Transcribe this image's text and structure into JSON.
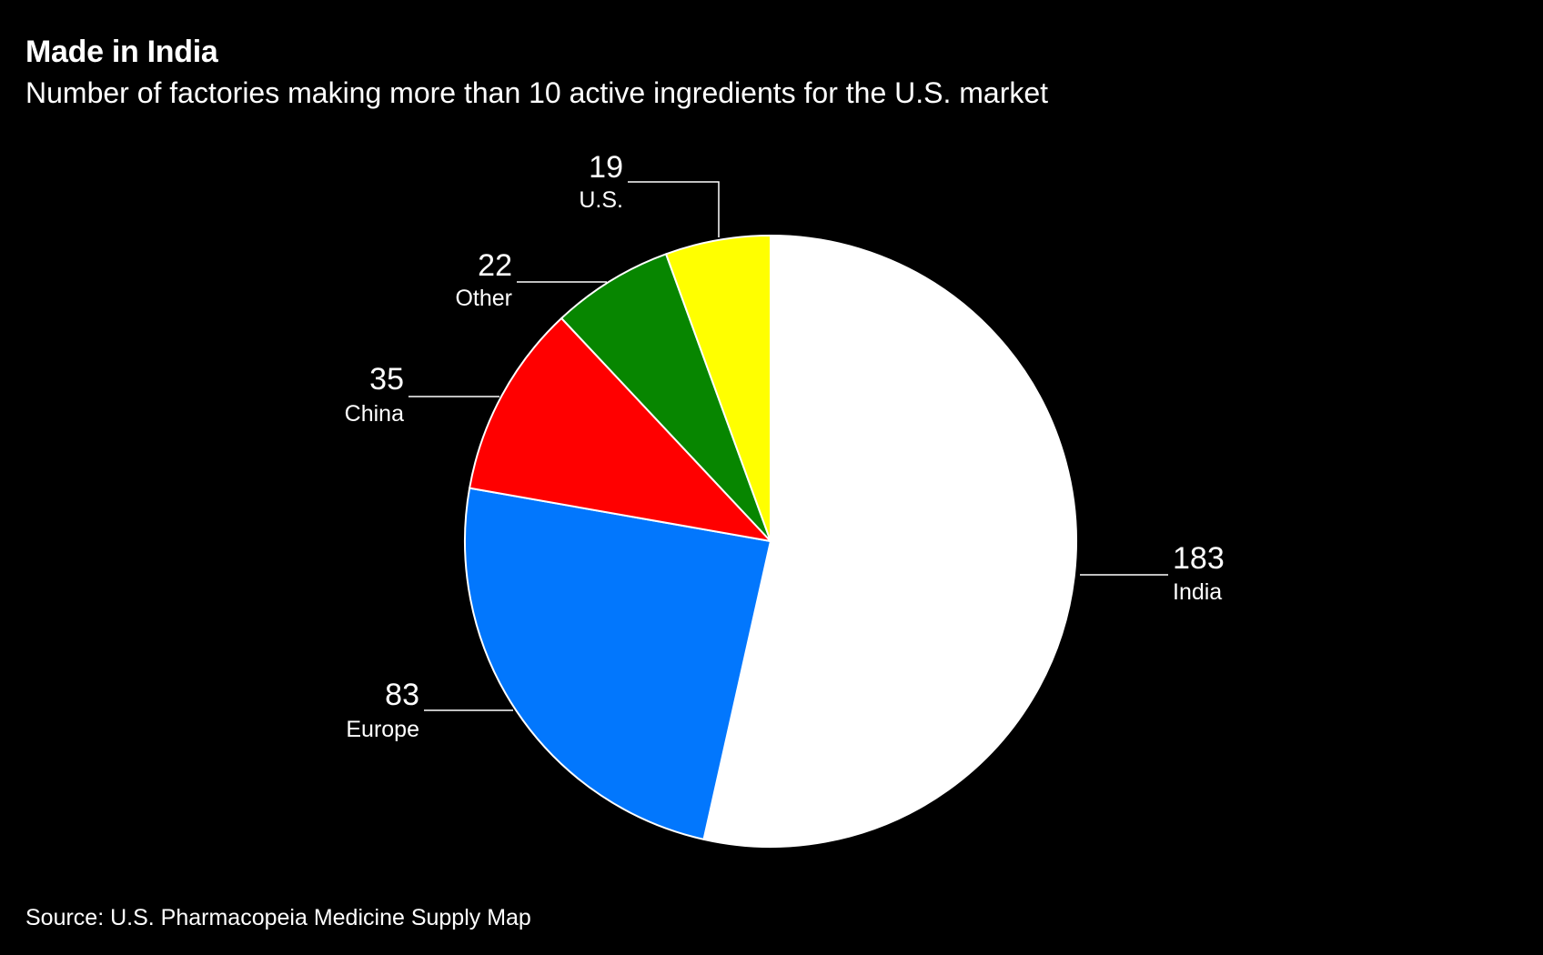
{
  "header": {
    "title": "Made in India",
    "subtitle": "Number of factories making more than 10 active ingredients for the U.S. market"
  },
  "footer": {
    "source": "Source: U.S. Pharmacopeia Medicine Supply Map"
  },
  "chart_data": {
    "type": "pie",
    "title": "Made in India",
    "subtitle": "Number of factories making more than 10 active ingredients for the U.S. market",
    "start_angle": "12 o'clock",
    "direction": "clockwise",
    "slices": [
      {
        "label": "India",
        "value": 183,
        "color": "#ffffff"
      },
      {
        "label": "Europe",
        "value": 83,
        "color": "#0277fd"
      },
      {
        "label": "China",
        "value": 35,
        "color": "#ff0000"
      },
      {
        "label": "Other",
        "value": 22,
        "color": "#078600"
      },
      {
        "label": "U.S.",
        "value": 19,
        "color": "#ffff00"
      }
    ],
    "slice_border_color": "#ffffff",
    "leader_color": "#ffffff",
    "legend": "none (direct labels)"
  }
}
